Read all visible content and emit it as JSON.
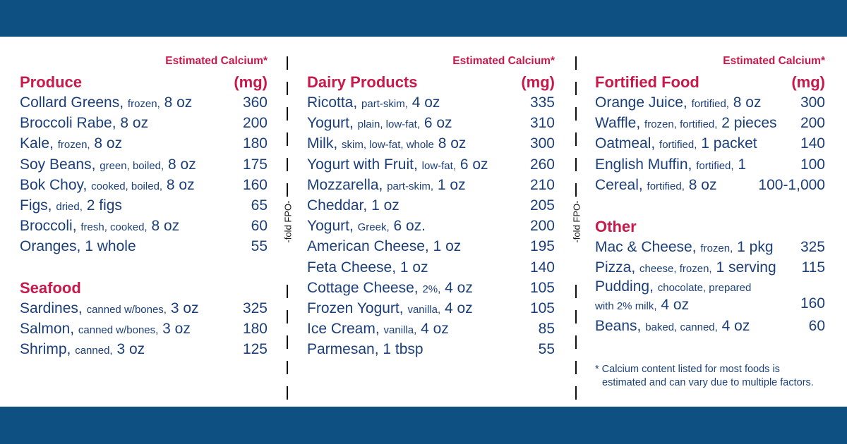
{
  "est_label": "Estimated Calcium*",
  "unit_label": "(mg)",
  "fold_label": "-fold FPO-",
  "produce": {
    "title": "Produce",
    "items": [
      {
        "name": "Collard Greens,",
        "desc": "frozen,",
        "qty": "8 oz",
        "mg": "360"
      },
      {
        "name": "Broccoli Rabe,",
        "desc": "",
        "qty": "8 oz",
        "mg": "200"
      },
      {
        "name": "Kale,",
        "desc": "frozen,",
        "qty": "8 oz",
        "mg": "180"
      },
      {
        "name": "Soy Beans,",
        "desc": "green, boiled,",
        "qty": "8 oz",
        "mg": "175"
      },
      {
        "name": "Bok Choy,",
        "desc": "cooked, boiled,",
        "qty": "8 oz",
        "mg": "160"
      },
      {
        "name": "Figs,",
        "desc": "dried,",
        "qty": "2 figs",
        "mg": "65"
      },
      {
        "name": "Broccoli,",
        "desc": "fresh, cooked,",
        "qty": "8 oz",
        "mg": "60"
      },
      {
        "name": "Oranges,",
        "desc": "",
        "qty": "1 whole",
        "mg": "55"
      }
    ]
  },
  "seafood": {
    "title": "Seafood",
    "items": [
      {
        "name": "Sardines,",
        "desc": "canned w/bones,",
        "qty": "3 oz",
        "mg": "325"
      },
      {
        "name": "Salmon,",
        "desc": "canned w/bones,",
        "qty": "3 oz",
        "mg": "180"
      },
      {
        "name": "Shrimp,",
        "desc": "canned,",
        "qty": "3 oz",
        "mg": "125"
      }
    ]
  },
  "dairy": {
    "title": "Dairy Products",
    "items": [
      {
        "name": "Ricotta,",
        "desc": "part-skim,",
        "qty": "4 oz",
        "mg": "335"
      },
      {
        "name": "Yogurt,",
        "desc": "plain, low-fat,",
        "qty": "6 oz",
        "mg": "310"
      },
      {
        "name": "Milk,",
        "desc": "skim, low-fat, whole",
        "qty": "8 oz",
        "mg": "300"
      },
      {
        "name": "Yogurt with Fruit,",
        "desc": "low-fat,",
        "qty": "6 oz",
        "mg": "260"
      },
      {
        "name": "Mozzarella,",
        "desc": "part-skim,",
        "qty": "1 oz",
        "mg": "210"
      },
      {
        "name": "Cheddar,",
        "desc": "",
        "qty": "1 oz",
        "mg": "205"
      },
      {
        "name": "Yogurt,",
        "desc": "Greek,",
        "qty": "6 oz.",
        "mg": "200"
      },
      {
        "name": "American Cheese,",
        "desc": "",
        "qty": "1 oz",
        "mg": "195"
      },
      {
        "name": "Feta Cheese,",
        "desc": "",
        "qty": "1 oz",
        "mg": "140"
      },
      {
        "name": "Cottage Cheese,",
        "desc": "2%,",
        "qty": "4 oz",
        "mg": "105"
      },
      {
        "name": "Frozen Yogurt,",
        "desc": "vanilla,",
        "qty": "4 oz",
        "mg": "105"
      },
      {
        "name": "Ice Cream,",
        "desc": "vanilla,",
        "qty": "4 oz",
        "mg": "85"
      },
      {
        "name": "Parmesan,",
        "desc": "",
        "qty": "1 tbsp",
        "mg": "55"
      }
    ]
  },
  "fortified": {
    "title": "Fortified Food",
    "items": [
      {
        "name": "Orange Juice,",
        "desc": "fortified,",
        "qty": "8 oz",
        "mg": "300"
      },
      {
        "name": "Waffle,",
        "desc": "frozen, fortified,",
        "qty": "2 pieces",
        "mg": "200"
      },
      {
        "name": "Oatmeal,",
        "desc": "fortified,",
        "qty": "1 packet",
        "mg": "140"
      },
      {
        "name": "English Muffin,",
        "desc": "fortified,",
        "qty": "1",
        "mg": "100"
      },
      {
        "name": "Cereal,",
        "desc": "fortified,",
        "qty": "8 oz",
        "mg": "100-1,000"
      }
    ]
  },
  "other": {
    "title": "Other",
    "items": [
      {
        "name": "Mac & Cheese,",
        "desc": "frozen,",
        "qty": "1 pkg",
        "mg": "325"
      },
      {
        "name": "Pizza,",
        "desc": "cheese, frozen,",
        "qty": "1 serving",
        "mg": "115"
      },
      {
        "name": "Pudding,",
        "desc": "chocolate, prepared",
        "desc2": "with 2% milk,",
        "qty": "4 oz",
        "mg": "160"
      },
      {
        "name": "Beans,",
        "desc": "baked, canned,",
        "qty": "4 oz",
        "mg": "60"
      }
    ]
  },
  "footnote": {
    "line1": "* Calcium content listed for most foods is",
    "line2": "estimated and can vary due to multiple factors."
  },
  "colors": {
    "band": "#0f5083",
    "heading": "#c8194b",
    "text": "#1b3f7a"
  }
}
